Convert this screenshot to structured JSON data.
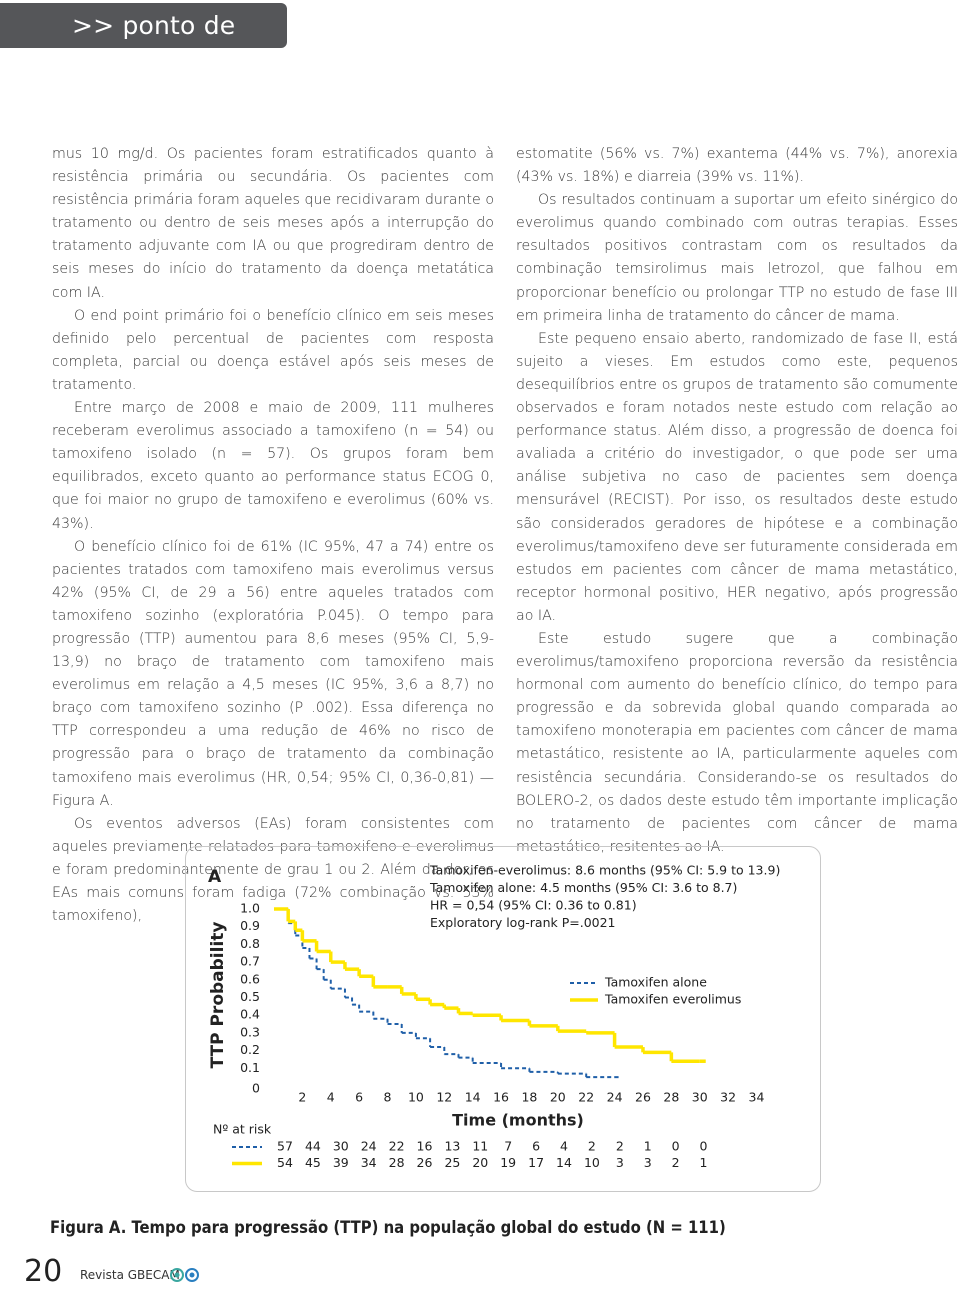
{
  "header": {
    "section": ">> ponto de vista"
  },
  "columns": {
    "left": [
      "mus 10 mg/d. Os pacientes foram estratificados quanto à resistência primária ou secundária. Os pacientes com resistência primária foram aqueles que recidivaram durante o tratamento ou dentro de seis meses após a interrupção do tratamento adjuvante com IA ou que progrediram dentro de seis meses do início do tratamento da doença metatática com IA.",
      "O end point primário foi o benefício clínico em seis meses definido pelo percentual de pacientes com resposta completa, parcial ou doença estável após seis meses de tratamento.",
      "Entre março de 2008 e maio de 2009, 111 mulheres receberam everolimus associado a tamoxifeno (n = 54) ou tamoxifeno isolado (n = 57). Os grupos foram bem equilibrados, exceto quanto ao performance status ECOG 0, que foi maior no grupo de tamoxifeno e everolimus (60% vs. 43%).",
      "O benefício clínico foi de 61% (IC 95%, 47 a 74) entre os pacientes tratados com tamoxifeno mais everolimus versus 42% (95% CI, de 29 a 56) entre aqueles tratados com tamoxifeno sozinho (exploratória P.045). O tempo para progressão (TTP) aumentou para 8,6 meses (95% CI, 5,9-13,9) no braço de tratamento com tamoxifeno mais everolimus em relação a 4,5 meses (IC 95%, 3,6 a 8,7) no braço com tamoxifeno sozinho (P .002). Essa diferença no TTP correspondeu a uma redução de 46% no risco de progressão para o braço de tratamento da combinação tamoxifeno mais everolimus (HR, 0,54; 95% CI, 0,36-0,81) — Figura A.",
      "Os eventos adversos (EAs) foram consistentes com aqueles previamente relatados para tamoxifeno e everolimus e foram predominantemente de grau 1 ou 2. Além da dor, os EAs mais comuns foram fadiga (72% combinação vs. 53% tamoxifeno),"
    ],
    "right": [
      "estomatite (56% vs. 7%) exantema (44% vs. 7%), anorexia (43% vs. 18%) e diarreia (39% vs. 11%).",
      "Os resultados continuam a suportar um efeito sinérgico do everolimus quando combinado com outras terapias. Esses resultados positivos contrastam com os resultados da combinação temsirolimus mais letrozol, que falhou em proporcionar benefício ou prolongar TTP no estudo de fase III em primeira linha de tratamento do câncer de mama.",
      "Este pequeno ensaio aberto, randomizado de fase II, está sujeito a vieses. Em estudos como este, pequenos desequilíbrios entre os grupos de tratamento são comumente observados e foram notados neste estudo com relação ao performance status. Além disso, a progressão de doenca foi avaliada a critério do investigador, o que pode ser uma análise subjetiva no caso de pacientes sem doença mensurável (RECIST). Por isso, os resultados deste estudo são considerados geradores de hipótese e a combinação everolimus/tamoxifeno deve ser futuramente considerada em estudos em pacientes com câncer de mama metastático, receptor hormonal positivo, HER negativo, após progressão ao IA.",
      "Este estudo sugere que a combinação everolimus/tamoxifeno proporciona reversão da resistência hormonal com aumento do benefício clínico, do tempo para progressão e da sobrevida global quando comparada ao tamoxifeno monoterapia em pacientes com câncer de mama metastático, resistente ao IA, particularmente aqueles com resistência secundária. Considerando-se os resultados do BOLERO-2, os dados deste estudo têm importante implicação no tratamento de pacientes com câncer de mama metastático, resitentes ao IA."
    ]
  },
  "chart_data": {
    "type": "step",
    "panel": "A",
    "y_label": "TTP Probability",
    "x_label": "Time (months)",
    "annotations": [
      "Tamoxifen-everolimus: 8.6 months (95% CI: 5.9 to 13.9)",
      "Tamoxifen alone: 4.5 months (95% CI: 3.6 to 8.7)",
      "HR = 0,54 (95% CI: 0.36 to 0.81)",
      "Exploratory log-rank P=.0021"
    ],
    "xlim": [
      0,
      34
    ],
    "xticks": [
      2,
      4,
      6,
      8,
      10,
      12,
      14,
      16,
      18,
      20,
      22,
      24,
      26,
      28,
      30,
      32,
      34
    ],
    "ylim": [
      0,
      1
    ],
    "yticks": [
      0,
      0.1,
      0.2,
      0.3,
      0.4,
      0.5,
      0.6,
      0.7,
      0.8,
      0.9,
      {
        "value": 1,
        "label": "1.0"
      }
    ],
    "grid": false,
    "legend": "right",
    "series": [
      {
        "name": "Tamoxifen alone",
        "color": "#1f5fa8",
        "dashed": true,
        "x": [
          0,
          1,
          1.5,
          2,
          2.5,
          3,
          3.5,
          4,
          5,
          5.5,
          6,
          7,
          8,
          9,
          10,
          11,
          12,
          13,
          14,
          16,
          18,
          20,
          22,
          24
        ],
        "values": [
          1,
          0.92,
          0.85,
          0.78,
          0.72,
          0.66,
          0.6,
          0.55,
          0.5,
          0.46,
          0.42,
          0.38,
          0.35,
          0.3,
          0.27,
          0.22,
          0.18,
          0.16,
          0.13,
          0.1,
          0.08,
          0.07,
          0.05,
          0.05
        ]
      },
      {
        "name": "Tamoxifen everolimus",
        "color": "#ffe600",
        "dashed": false,
        "x": [
          0,
          1,
          1.5,
          2,
          3,
          4,
          5,
          6,
          7,
          8,
          9,
          10,
          11,
          12,
          13,
          14,
          16,
          18,
          20,
          22,
          24,
          26,
          28,
          30
        ],
        "values": [
          1,
          0.93,
          0.88,
          0.82,
          0.76,
          0.7,
          0.66,
          0.62,
          0.56,
          0.56,
          0.52,
          0.49,
          0.46,
          0.44,
          0.41,
          0.4,
          0.37,
          0.34,
          0.31,
          0.3,
          0.22,
          0.19,
          0.14,
          0.14
        ]
      }
    ],
    "at_risk": {
      "label": "Nº at risk",
      "rows": [
        [
          57,
          44,
          30,
          24,
          22,
          16,
          13,
          11,
          7,
          6,
          4,
          2,
          2,
          1,
          0,
          0
        ],
        [
          54,
          45,
          39,
          34,
          28,
          26,
          25,
          20,
          19,
          17,
          14,
          10,
          3,
          3,
          2,
          1
        ]
      ]
    }
  },
  "caption": "Figura A. Tempo para progressão (TTP) na população global do estudo (N = 111)",
  "footer": {
    "page": "20",
    "magazine": "Revista GBECAM"
  }
}
